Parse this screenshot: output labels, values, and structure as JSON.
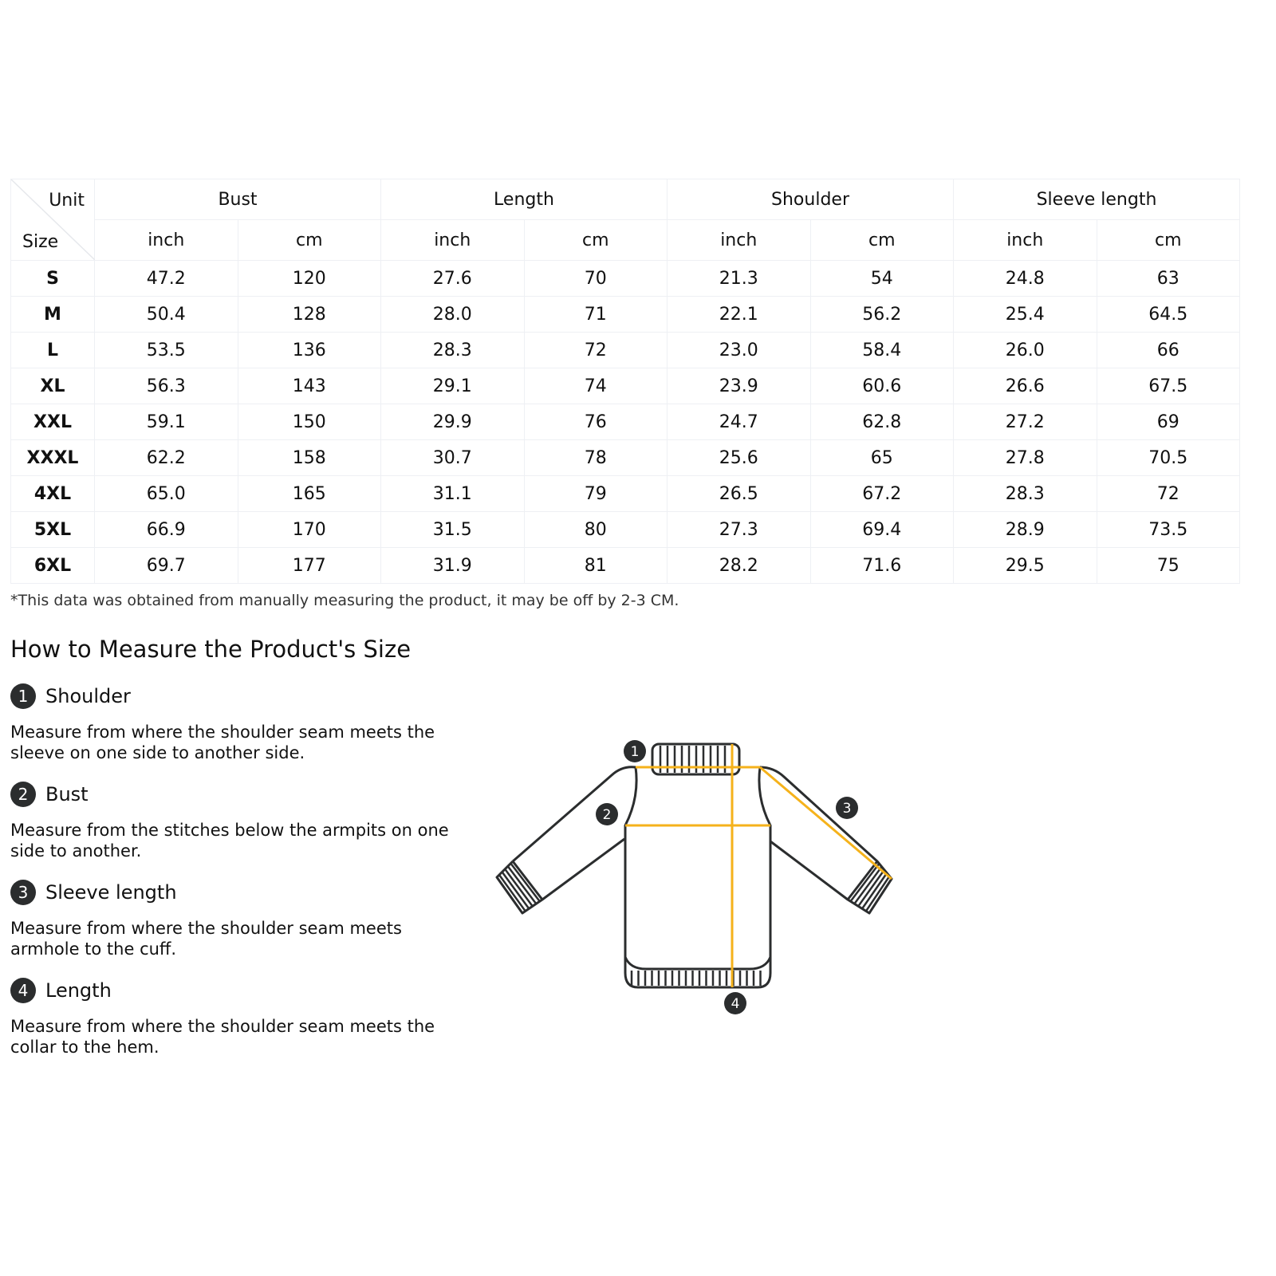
{
  "table": {
    "corner": {
      "unit": "Unit",
      "size": "Size"
    },
    "groups": [
      "Bust",
      "Length",
      "Shoulder",
      "Sleeve length"
    ],
    "units": [
      "inch",
      "cm",
      "inch",
      "cm",
      "inch",
      "cm",
      "inch",
      "cm"
    ],
    "rows": [
      [
        "S",
        "47.2",
        "120",
        "27.6",
        "70",
        "21.3",
        "54",
        "24.8",
        "63"
      ],
      [
        "M",
        "50.4",
        "128",
        "28.0",
        "71",
        "22.1",
        "56.2",
        "25.4",
        "64.5"
      ],
      [
        "L",
        "53.5",
        "136",
        "28.3",
        "72",
        "23.0",
        "58.4",
        "26.0",
        "66"
      ],
      [
        "XL",
        "56.3",
        "143",
        "29.1",
        "74",
        "23.9",
        "60.6",
        "26.6",
        "67.5"
      ],
      [
        "XXL",
        "59.1",
        "150",
        "29.9",
        "76",
        "24.7",
        "62.8",
        "27.2",
        "69"
      ],
      [
        "XXXL",
        "62.2",
        "158",
        "30.7",
        "78",
        "25.6",
        "65",
        "27.8",
        "70.5"
      ],
      [
        "4XL",
        "65.0",
        "165",
        "31.1",
        "79",
        "26.5",
        "67.2",
        "28.3",
        "72"
      ],
      [
        "5XL",
        "66.9",
        "170",
        "31.5",
        "80",
        "27.3",
        "69.4",
        "28.9",
        "73.5"
      ],
      [
        "6XL",
        "69.7",
        "177",
        "31.9",
        "81",
        "28.2",
        "71.6",
        "29.5",
        "75"
      ]
    ]
  },
  "note": "*This data was obtained from manually measuring the product, it may be off by 2-3 CM.",
  "howto": {
    "title": "How to Measure the Product's Size",
    "items": [
      {
        "num": "1",
        "title": "Shoulder",
        "desc": "Measure from where the shoulder seam meets the sleeve on one side to another side."
      },
      {
        "num": "2",
        "title": "Bust",
        "desc": "Measure from the stitches below the armpits on one side to another."
      },
      {
        "num": "3",
        "title": "Sleeve length",
        "desc": "Measure from where the shoulder seam meets armhole to the cuff."
      },
      {
        "num": "4",
        "title": "Length",
        "desc": "Measure from where the shoulder seam meets the collar to the hem."
      }
    ]
  },
  "diagram": {
    "badges": [
      "1",
      "2",
      "3",
      "4"
    ],
    "measure_color": "#f5b21b",
    "outline_color": "#2b2d2e"
  }
}
